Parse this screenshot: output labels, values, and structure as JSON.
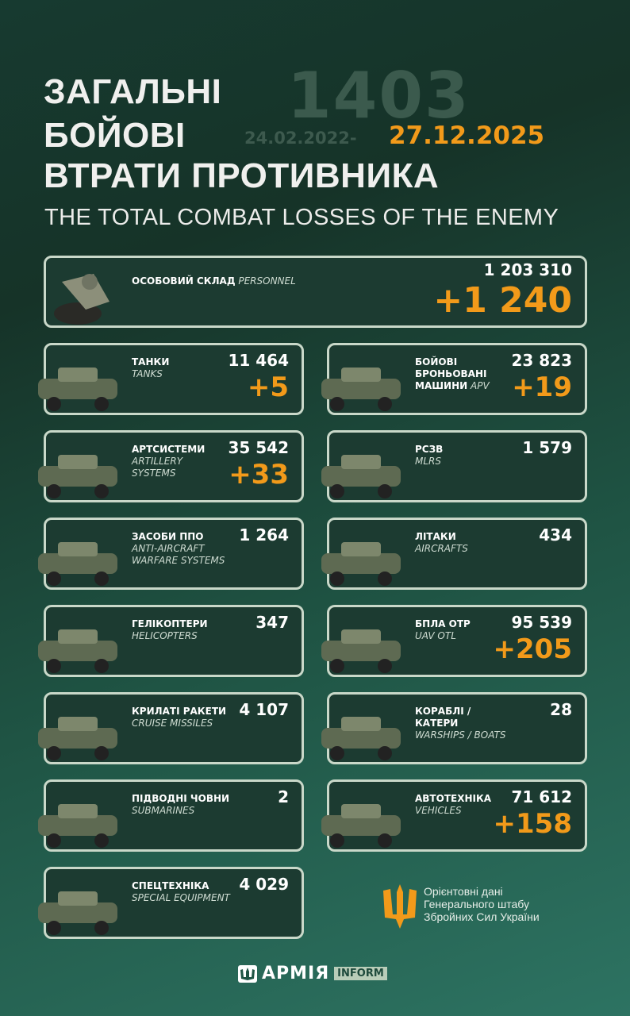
{
  "header": {
    "title_lines": [
      "ЗАГАЛЬНІ",
      "БОЙОВІ",
      "ВТРАТИ ПРОТИВНИКА"
    ],
    "days": "1403",
    "date_from": "24.02.2022-",
    "date_to": "27.12.2025",
    "subtitle": "THE TOTAL COMBAT LOSSES OF THE ENEMY"
  },
  "colors": {
    "accent": "#f29a1a",
    "card_bg": "#1c3b31",
    "card_border": "#c9d8c9"
  },
  "personnel": {
    "ua": "ОСОБОВИЙ СКЛАД",
    "en": "PERSONNEL",
    "total": "1 203 310",
    "delta": "+1 240",
    "icon": "soldier-image"
  },
  "cards": [
    {
      "id": "tanks",
      "ua": "ТАНКИ",
      "en": "TANKS",
      "total": "11 464",
      "delta": "+5",
      "icon": "tank-image"
    },
    {
      "id": "apv",
      "ua": "БОЙОВІ БРОНЬОВАНІ МАШИНИ",
      "en": "APV",
      "total": "23 823",
      "delta": "+19",
      "icon": "armored-vehicle-image"
    },
    {
      "id": "artillery",
      "ua": "АРТСИСТЕМИ",
      "en": "ARTILLERY SYSTEMS",
      "total": "35 542",
      "delta": "+33",
      "icon": "artillery-image"
    },
    {
      "id": "mlrs",
      "ua": "РСЗВ",
      "en": "MLRS",
      "total": "1 579",
      "delta": "",
      "icon": "mlrs-image"
    },
    {
      "id": "anti-aircraft",
      "ua": "ЗАСОБИ ППО",
      "en": "ANTI-AIRCRAFT WARFARE SYSTEMS",
      "total": "1 264",
      "delta": "",
      "icon": "air-defense-image"
    },
    {
      "id": "aircraft",
      "ua": "ЛІТАКИ",
      "en": "AIRCRAFTS",
      "total": "434",
      "delta": "",
      "icon": "jet-image"
    },
    {
      "id": "helicopters",
      "ua": "ГЕЛІКОПТЕРИ",
      "en": "HELICOPTERS",
      "total": "347",
      "delta": "",
      "icon": "helicopter-image"
    },
    {
      "id": "uav",
      "ua": "БПЛА ОТР",
      "en": "UAV OTL",
      "total": "95 539",
      "delta": "+205",
      "icon": "drone-image"
    },
    {
      "id": "cruise-missiles",
      "ua": "КРИЛАТІ РАКЕТИ",
      "en": "CRUISE MISSILES",
      "total": "4 107",
      "delta": "",
      "icon": "missile-image"
    },
    {
      "id": "warships",
      "ua": "КОРАБЛІ / КАТЕРИ",
      "en": "WARSHIPS / BOATS",
      "total": "28",
      "delta": "",
      "icon": "warship-image"
    },
    {
      "id": "submarines",
      "ua": "ПІДВОДНІ ЧОВНИ",
      "en": "SUBMARINES",
      "total": "2",
      "delta": "",
      "icon": "submarine-image"
    },
    {
      "id": "vehicles",
      "ua": "АВТОТЕХНІКА",
      "en": "VEHICLES",
      "total": "71 612",
      "delta": "+158",
      "icon": "truck-image"
    },
    {
      "id": "special-equipment",
      "ua": "СПЕЦТЕХНІКА",
      "en": "SPECIAL EQUIPMENT",
      "total": "4 029",
      "delta": "",
      "icon": "engineering-vehicle-image"
    }
  ],
  "source": {
    "lines": [
      "Орієнтовні дані",
      "Генерального штабу",
      "Збройних Сил України"
    ],
    "icon": "trident-icon"
  },
  "footer": {
    "brand": "АРМІЯ",
    "badge": "INFORM"
  }
}
